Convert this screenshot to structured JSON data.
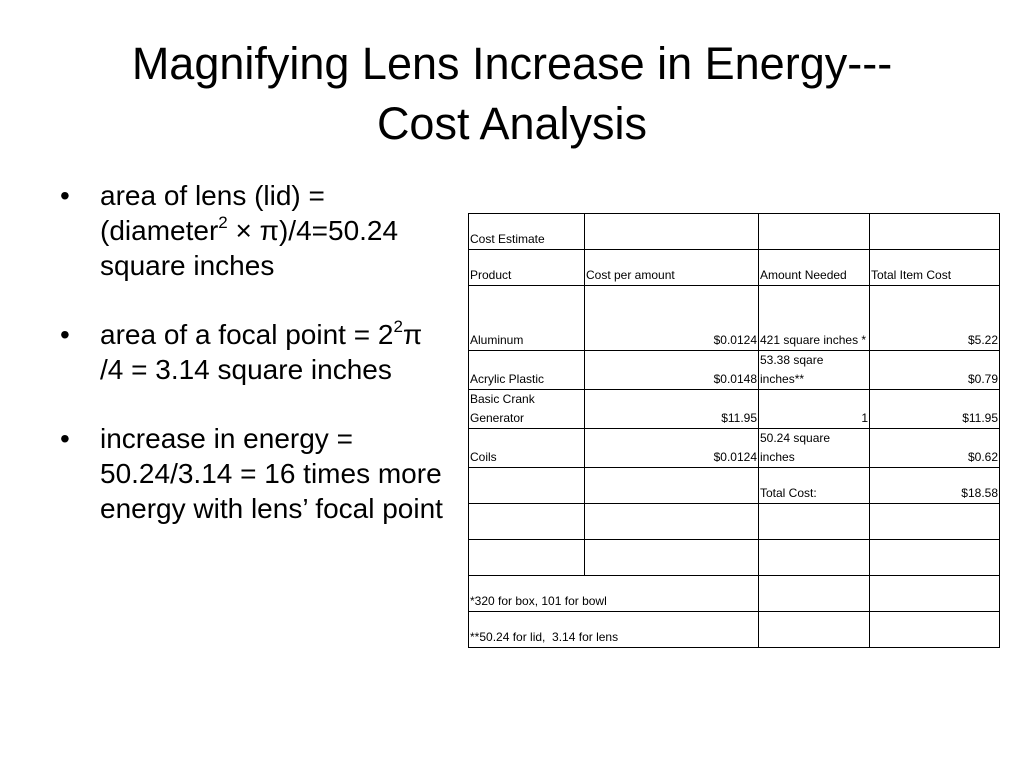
{
  "title": {
    "line1": "Magnifying Lens Increase in Energy---",
    "line2": "Cost Analysis"
  },
  "bullets": [
    {
      "pre": "area of lens (lid) = (diameter",
      "sup": "2",
      "post": " × π)/4=50.24 square inches"
    },
    {
      "pre": "area of a focal point = 2",
      "sup": "2",
      "post": "π /4 = 3.14 square inches"
    },
    {
      "pre": "increase in energy = 50.24/3.14 = 16 times more energy with lens’ focal point",
      "sup": "",
      "post": ""
    }
  ],
  "bullet_symbol": "•",
  "table": {
    "caption": "Cost Estimate",
    "headers": [
      "Product",
      "Cost per amount",
      "Amount Needed",
      "Total Item Cost"
    ],
    "rows": [
      [
        "Aluminum",
        "$0.0124",
        "421 square inches *",
        "$5.22"
      ],
      [
        "Acrylic Plastic",
        "$0.0148",
        "53.38 sqare inches**",
        "$0.79"
      ],
      [
        "Basic Crank Generator",
        "$11.95",
        "1",
        "$11.95"
      ],
      [
        "Coils",
        "$0.0124",
        "50.24 square inches",
        "$0.62"
      ]
    ],
    "total_label": "Total Cost:",
    "total_value": "$18.58",
    "footnotes": [
      "*320 for box, 101 for bowl",
      "**50.24 for lid,  3.14 for lens"
    ]
  }
}
